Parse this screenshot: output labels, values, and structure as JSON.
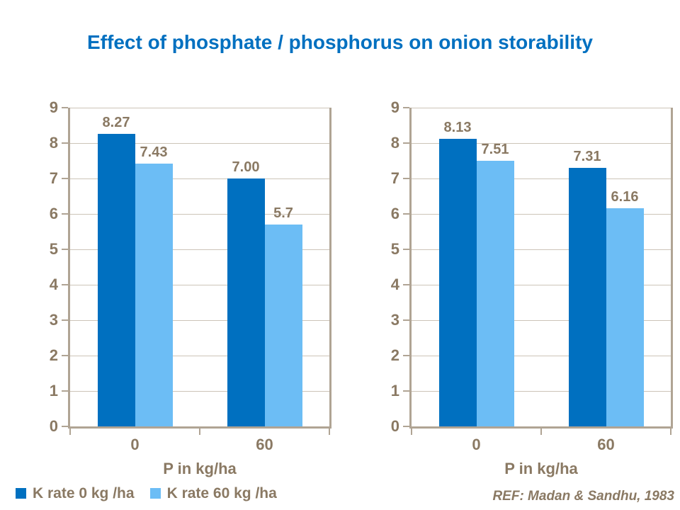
{
  "title": {
    "text": "Effect of phosphate / phosphorus on onion storability",
    "color": "#0070C0"
  },
  "colors": {
    "series1": "#0070C0",
    "series2": "#6CBDF5",
    "axis": "#B0A494",
    "gridline": "#CCC4B8",
    "text_brown": "#8A7963"
  },
  "legend": {
    "position": "bottom-left",
    "items": [
      {
        "label": "K rate 0 kg /ha",
        "color": "#0070C0"
      },
      {
        "label": "K rate 60 kg /ha",
        "color": "#6CBDF5"
      }
    ]
  },
  "footnote": "REF: Madan & Sandhu, 1983",
  "chart_data": [
    {
      "type": "bar",
      "title": "",
      "categories": [
        "0",
        "60"
      ],
      "series": [
        {
          "name": "K rate 0 kg /ha",
          "color": "#0070C0",
          "values": [
            8.27,
            7.0
          ],
          "labels": [
            "8.27",
            "7.00"
          ]
        },
        {
          "name": "K rate 60 kg /ha",
          "color": "#6CBDF5",
          "values": [
            7.43,
            5.7
          ],
          "labels": [
            "7.43",
            "5.7"
          ]
        }
      ],
      "xlabel": "P in kg/ha",
      "ylabel": "",
      "ylim": [
        0,
        9
      ],
      "y_ticks": [
        0,
        1,
        2,
        3,
        4,
        5,
        6,
        7,
        8,
        9
      ],
      "grid": true,
      "data_labels": true
    },
    {
      "type": "bar",
      "title": "",
      "categories": [
        "0",
        "60"
      ],
      "series": [
        {
          "name": "K rate 0 kg /ha",
          "color": "#0070C0",
          "values": [
            8.13,
            7.31
          ],
          "labels": [
            "8.13",
            "7.31"
          ]
        },
        {
          "name": "K rate 60 kg /ha",
          "color": "#6CBDF5",
          "values": [
            7.51,
            6.16
          ],
          "labels": [
            "7.51",
            "6.16"
          ]
        }
      ],
      "xlabel": "P in kg/ha",
      "ylabel": "",
      "ylim": [
        0,
        9
      ],
      "y_ticks": [
        0,
        1,
        2,
        3,
        4,
        5,
        6,
        7,
        8,
        9
      ],
      "grid": true,
      "data_labels": true
    }
  ]
}
